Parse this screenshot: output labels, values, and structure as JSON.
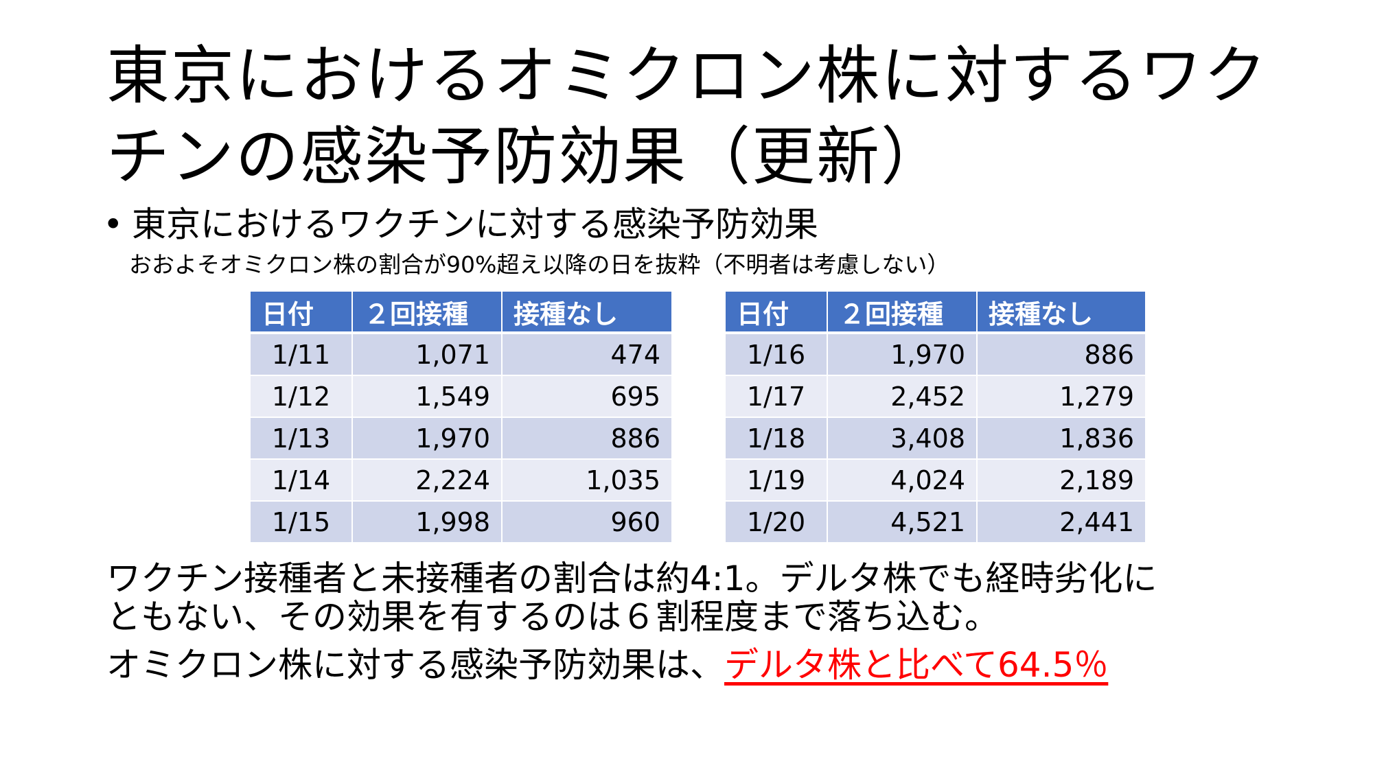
{
  "title_line1": "東京におけるオミクロン株に対するワク",
  "title_line2": "チンの感染予防効果（更新）",
  "bullet": {
    "symbol": "•",
    "text": "東京におけるワクチンに対する感染予防効果"
  },
  "subnote": "おおよそオミクロン株の割合が90%超え以降の日を抜粋（不明者は考慮しない）",
  "table_headers": [
    "日付",
    "２回接種",
    "接種なし"
  ],
  "table_left": {
    "rows": [
      {
        "date": "1/11",
        "two_doses": "1,071",
        "unvaccinated": "474"
      },
      {
        "date": "1/12",
        "two_doses": "1,549",
        "unvaccinated": "695"
      },
      {
        "date": "1/13",
        "two_doses": "1,970",
        "unvaccinated": "886"
      },
      {
        "date": "1/14",
        "two_doses": "2,224",
        "unvaccinated": "1,035"
      },
      {
        "date": "1/15",
        "two_doses": "1,998",
        "unvaccinated": "960"
      }
    ]
  },
  "table_right": {
    "rows": [
      {
        "date": "1/16",
        "two_doses": "1,970",
        "unvaccinated": "886"
      },
      {
        "date": "1/17",
        "two_doses": "2,452",
        "unvaccinated": "1,279"
      },
      {
        "date": "1/18",
        "two_doses": "3,408",
        "unvaccinated": "1,836"
      },
      {
        "date": "1/19",
        "two_doses": "4,024",
        "unvaccinated": "2,189"
      },
      {
        "date": "1/20",
        "two_doses": "4,521",
        "unvaccinated": "2,441"
      }
    ]
  },
  "paragraph1_line1": "ワクチン接種者と未接種者の割合は約4:1。デルタ株でも経時劣化に",
  "paragraph1_line2": "ともない、その効果を有するのは６割程度まで落ち込む。",
  "paragraph2_prefix": "オミクロン株に対する感染予防効果は、",
  "paragraph2_highlight": "デルタ株と比べて64.5％",
  "colors": {
    "header_bg": "#4472c4",
    "row_dark": "#cfd5ea",
    "row_light": "#e9ebf5",
    "highlight": "#ff0000"
  }
}
